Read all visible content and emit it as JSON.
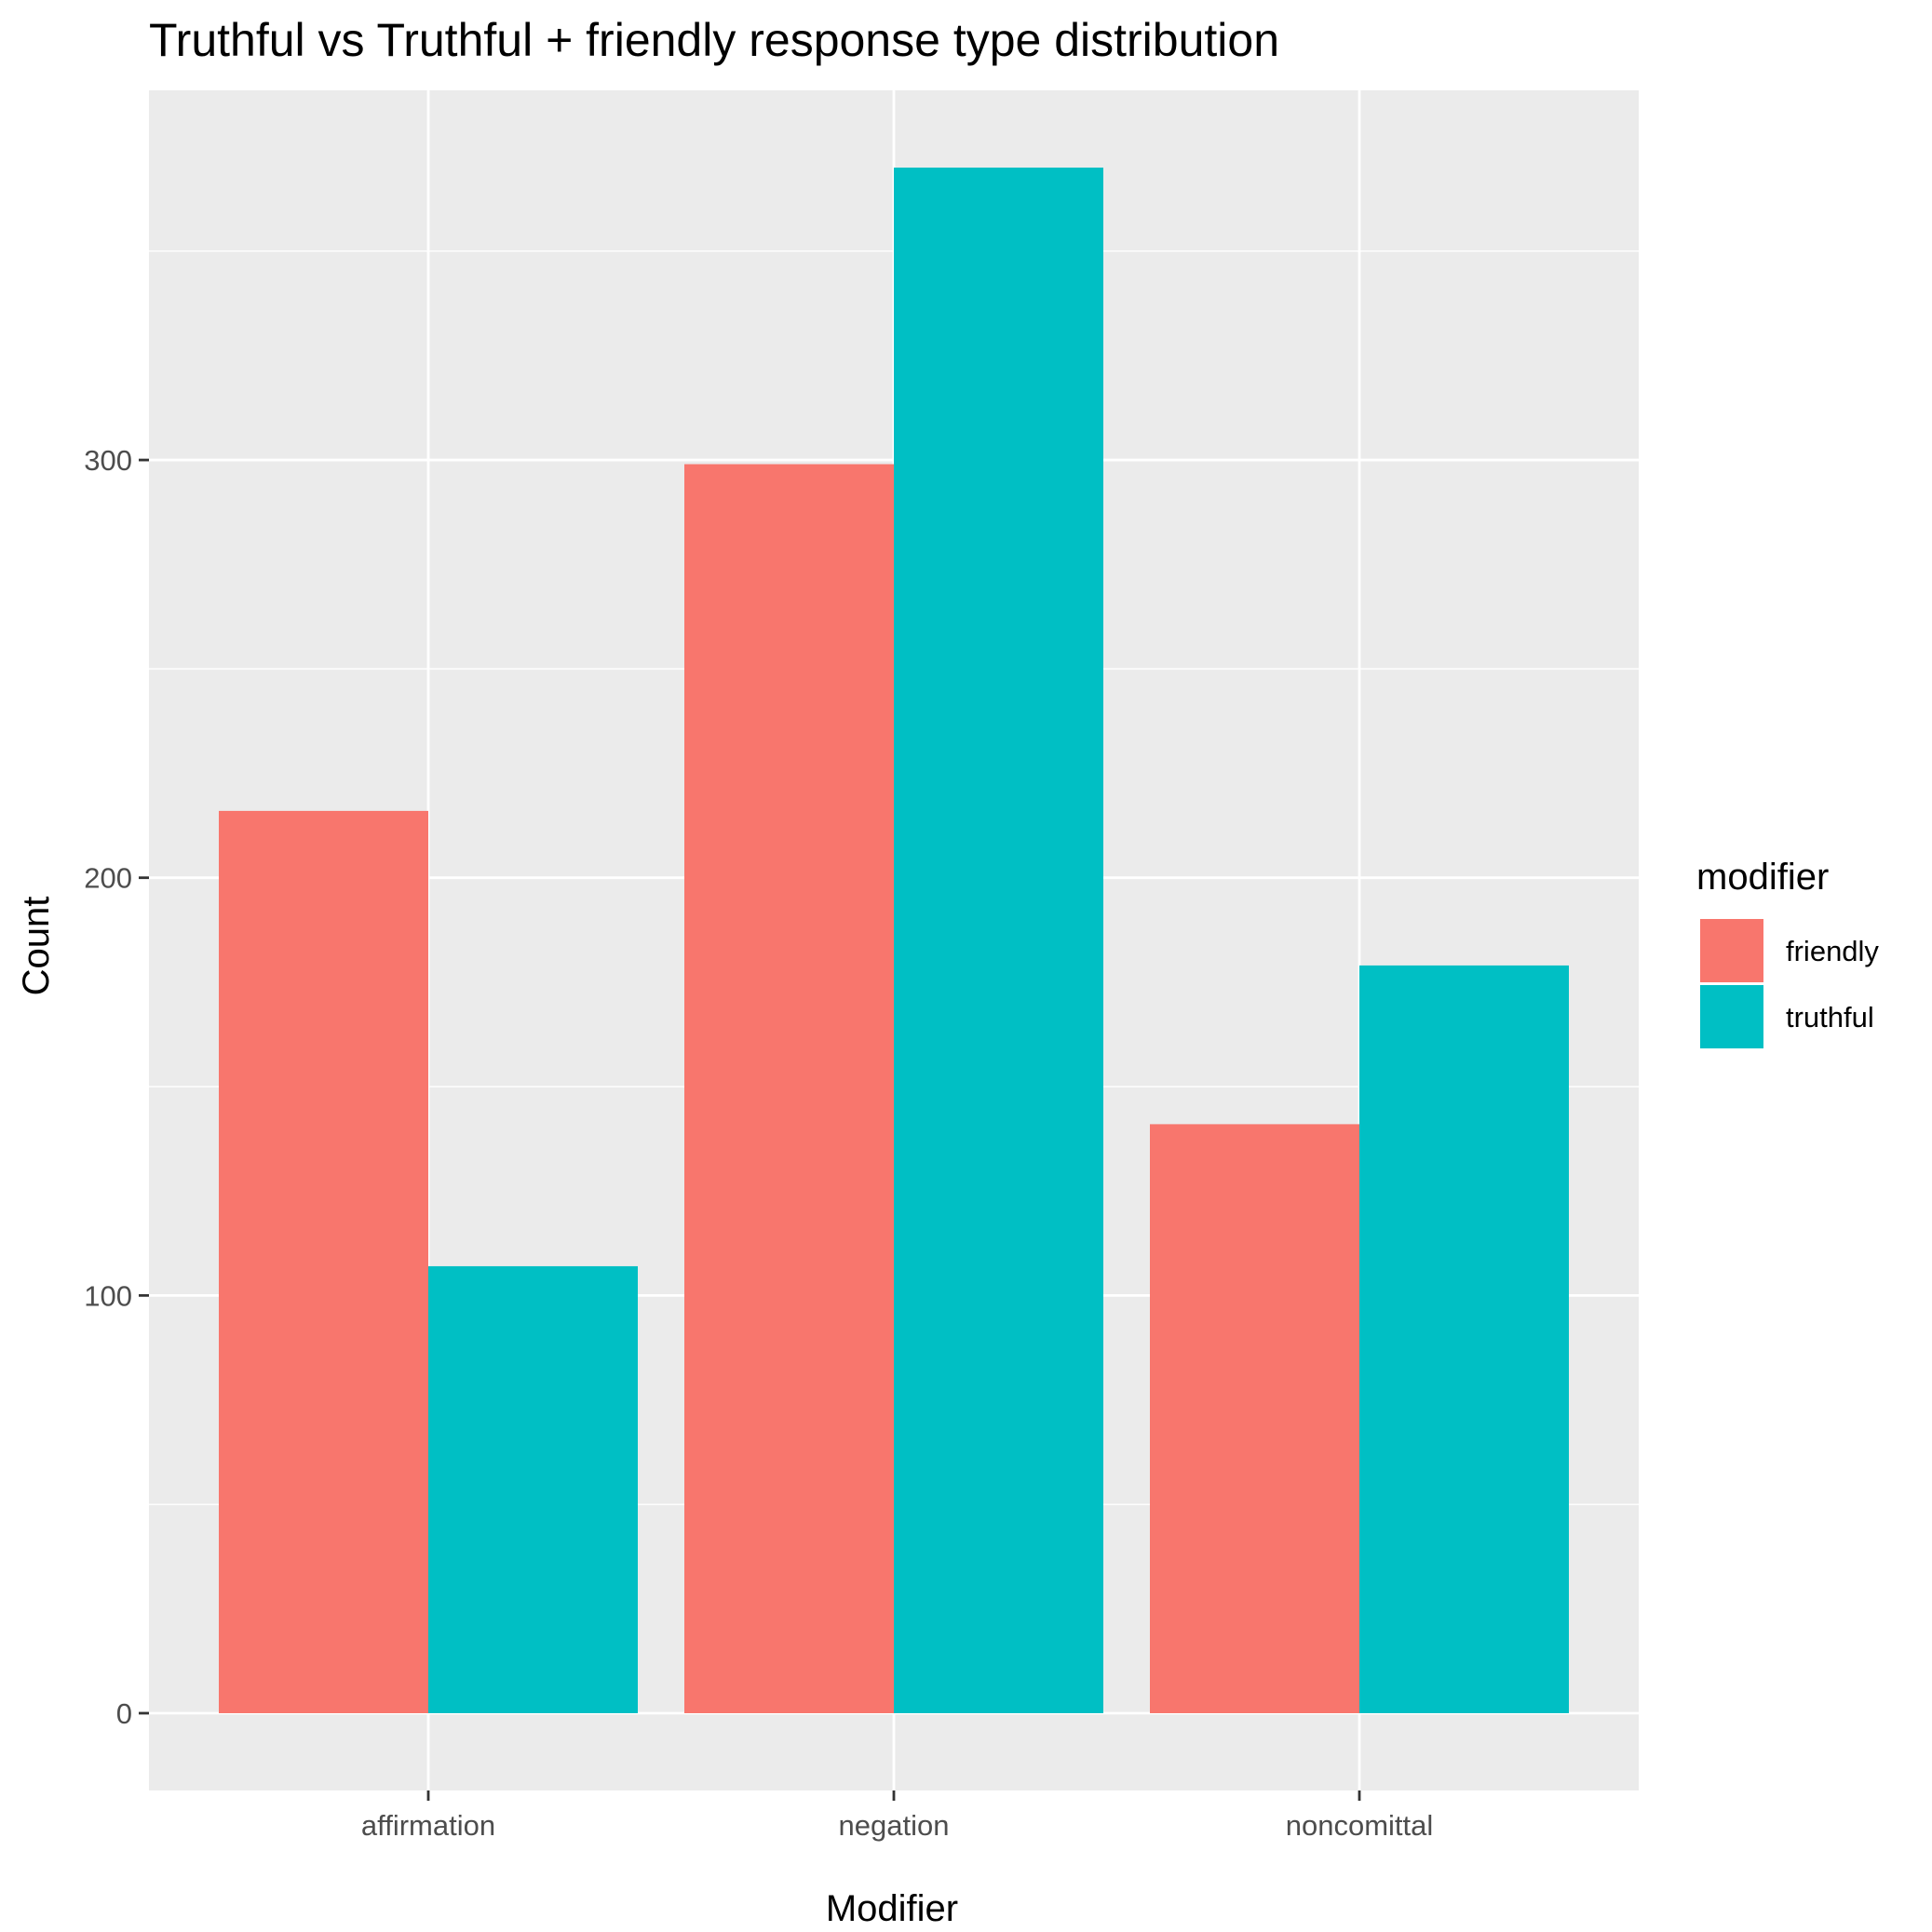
{
  "chart_data": {
    "type": "bar",
    "title": "Truthful vs Truthful + friendly response type distribution",
    "xlabel": "Modifier",
    "ylabel": "Count",
    "categories": [
      "affirmation",
      "negation",
      "noncomittal"
    ],
    "series": [
      {
        "name": "friendly",
        "color": "#F8766D",
        "values": [
          216,
          299,
          141
        ]
      },
      {
        "name": "truthful",
        "color": "#00BFC4",
        "values": [
          107,
          370,
          179
        ]
      }
    ],
    "ylim": [
      -18.5,
      388.5
    ],
    "yticks": [
      0,
      100,
      200,
      300
    ],
    "legend": {
      "title": "modifier",
      "position": "right"
    },
    "grid": true,
    "panel_background": "#EBEBEB",
    "grid_color": "#FFFFFF"
  }
}
